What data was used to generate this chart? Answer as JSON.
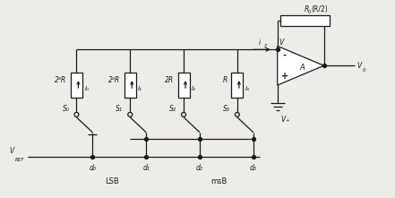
{
  "fig_width": 4.41,
  "fig_height": 2.21,
  "dpi": 100,
  "bg_color": "#eeece8",
  "line_color": "#1a1a1a",
  "resistor_labels": [
    "2³R",
    "2²R",
    "2R",
    "R"
  ],
  "current_labels": [
    "I₀",
    "I₁",
    "I₂",
    "I₃"
  ],
  "switch_labels": [
    "S₀",
    "S₁",
    "S₂",
    "S₃"
  ],
  "bit_labels": [
    "d₀",
    "d₁",
    "d₂",
    "d₃"
  ],
  "lsb_label": "LSB",
  "msb_label": "msB",
  "vref_label": "V",
  "vref_sub": "REF",
  "feedback_label": "R",
  "feedback_sub": "0",
  "feedback_paren": "(R/2)",
  "opamp_label": "A",
  "vout_label": "V",
  "vout_sub": "0",
  "vplus_label": "V",
  "vplus_sub": "+",
  "current_sum_label": "i",
  "current_sum_sub": "Σ",
  "vnode_label": "V"
}
